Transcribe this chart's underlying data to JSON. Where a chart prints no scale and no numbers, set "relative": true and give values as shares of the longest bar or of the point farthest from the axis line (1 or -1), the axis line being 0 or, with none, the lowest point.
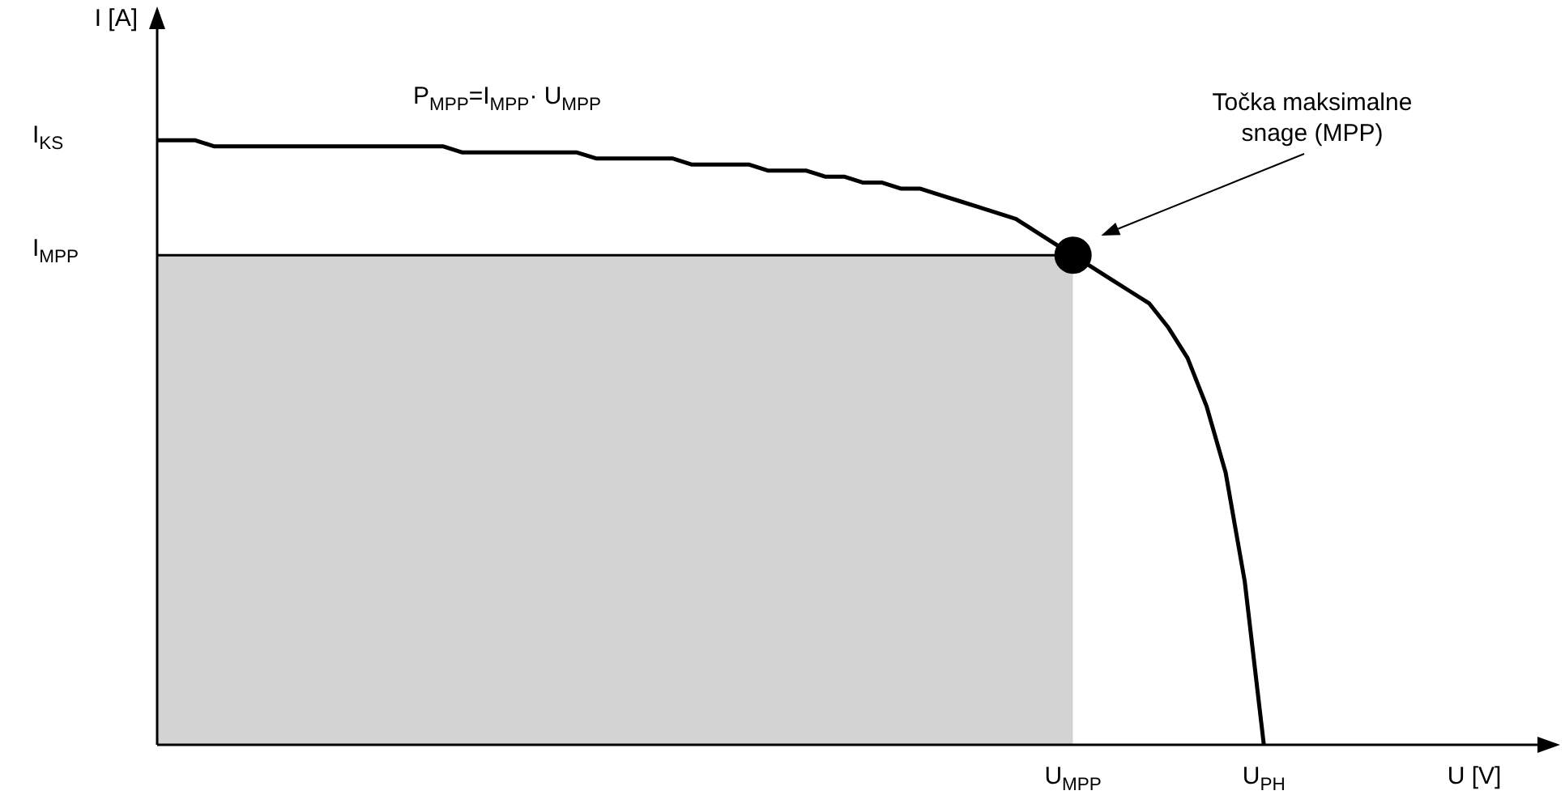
{
  "chart_data": {
    "type": "line",
    "relative": true,
    "xlabel": "U [V]",
    "ylabel": "I [A]",
    "categories": [
      null,
      null,
      null,
      null,
      null,
      null,
      null,
      null,
      null,
      null,
      null,
      null,
      null,
      null,
      null,
      null,
      null,
      null,
      null,
      null,
      null,
      null,
      null,
      null,
      null,
      null,
      null,
      null,
      null,
      null,
      null,
      null,
      null,
      null,
      null,
      null,
      null,
      null,
      null,
      null,
      null,
      null,
      null,
      null,
      null,
      null,
      null,
      null,
      "U$_{MPP}$",
      null,
      null,
      null,
      null,
      null,
      null,
      null,
      null,
      null,
      "U$_{PH}$",
      null,
      null,
      null,
      null,
      null,
      null,
      null,
      null,
      null,
      null,
      null,
      null,
      null,
      null
    ],
    "series": [
      {
        "type": "area",
        "color": "#bdbdbd",
        "values": [
          0.81,
          0.81,
          0.81,
          0.81,
          0.81,
          0.81,
          0.81,
          0.81,
          0.81,
          0.81,
          0.81,
          0.81,
          0.81,
          0.81,
          0.81,
          0.81,
          0.81,
          0.81,
          0.81,
          0.81,
          0.81,
          0.81,
          0.81,
          0.81,
          0.81,
          0.81,
          0.81,
          0.81,
          0.81,
          0.81,
          0.81,
          0.81,
          0.81,
          0.81,
          0.81,
          0.81,
          0.81,
          0.81,
          0.81,
          0.81,
          0.81,
          0.81,
          0.81,
          0.81,
          0.81,
          0.81,
          0.81,
          0.81,
          0.81,
          null,
          null,
          null,
          null,
          null,
          null,
          null,
          null,
          null,
          null,
          null,
          null,
          null,
          null,
          null,
          null,
          null,
          null,
          null,
          null,
          null,
          null,
          null,
          null
        ]
      },
      {
        "color": "#000000",
        "values": [
          1.0,
          1.0,
          1.0,
          0.99,
          0.99,
          0.99,
          0.99,
          0.99,
          0.99,
          0.99,
          0.99,
          0.99,
          0.99,
          0.99,
          0.99,
          0.99,
          0.98,
          0.98,
          0.98,
          0.98,
          0.98,
          0.98,
          0.98,
          0.97,
          0.97,
          0.97,
          0.97,
          0.97,
          0.96,
          0.96,
          0.96,
          0.96,
          0.95,
          0.95,
          0.95,
          0.94,
          0.94,
          0.93,
          0.93,
          0.92,
          0.92,
          0.91,
          0.9,
          0.89,
          0.88,
          0.87,
          0.85,
          0.83,
          0.81,
          0.79,
          0.77,
          0.75,
          0.73,
          0.69,
          0.64,
          0.56,
          0.45,
          0.27,
          0,
          null,
          null,
          null,
          null,
          null,
          null,
          null,
          null,
          null,
          null,
          null,
          null,
          null,
          null
        ]
      },
      {
        "type": "scatter",
        "color": "#000000",
        "marker": "circle",
        "x": [
          "U$_{MPP}$"
        ],
        "values": [
          0.81
        ]
      }
    ],
    "annotations": [
      "P$_{MPP}$=I$_{MPP}$· U$_{MPP}$",
      "Točka maksimalne snage (MPP)",
      "I$_{KS}$",
      "I$_{MPP}$"
    ],
    "legend": false,
    "grid": false
  }
}
